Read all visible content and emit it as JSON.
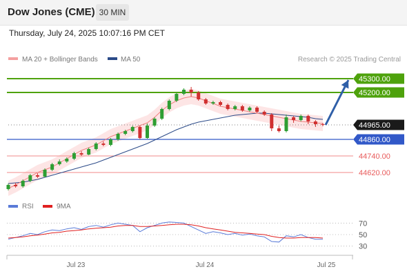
{
  "header": {
    "title": "Dow Jones (CME)",
    "timeframe": "30 MIN"
  },
  "datetime": "Thursday, July 24, 2025 10:07:16 PM CET",
  "legend": {
    "bb_label": "MA 20 + Bollinger Bands",
    "ma50_label": "MA 50",
    "credit": "Research © 2025 Trading Central"
  },
  "rsi_legend": {
    "rsi_label": "RSI",
    "ma_label": "9MA"
  },
  "colors": {
    "green": "#4ea20c",
    "blue": "#3158c8",
    "red": "#e85a5a",
    "bb_fill": "#fcdcdc",
    "ma20": "#f08080",
    "ma50": "#2b4a88",
    "arrow": "#2f5fa8",
    "candle_up": "#2e9e33",
    "candle_down": "#d03030"
  },
  "chart_data": [
    {
      "type": "candlestick",
      "ylim": [
        44460,
        45390
      ],
      "x_ticks": [
        "Jul 23",
        "Jul 24",
        "Jul 25"
      ],
      "series": [
        {
          "name": "MA 20 + Bollinger Bands",
          "values": [
            44505,
            44530,
            44560,
            44590,
            44620,
            44640,
            44660,
            44690,
            44720,
            44750,
            44780,
            44800,
            44820,
            44850,
            44880,
            44900,
            44920,
            44940,
            44960,
            44980,
            45020,
            45070,
            45110,
            45140,
            45160,
            45170,
            45160,
            45140,
            45120,
            45100,
            45090,
            45080,
            45070,
            45060,
            45050,
            45040,
            45030,
            45020,
            45010,
            45000,
            44990,
            44985,
            44980,
            44975
          ]
        },
        {
          "name": "MA 50",
          "values": [
            44540,
            44545,
            44550,
            44560,
            44570,
            44585,
            44600,
            44615,
            44630,
            44645,
            44660,
            44675,
            44690,
            44710,
            44730,
            44750,
            44770,
            44790,
            44810,
            44830,
            44855,
            44880,
            44905,
            44930,
            44950,
            44970,
            44985,
            44995,
            45005,
            45015,
            45025,
            45035,
            45040,
            45045,
            45050,
            45050,
            45045,
            45040,
            45035,
            45030,
            45025,
            45020,
            45010,
            45005
          ]
        }
      ],
      "candles": [
        [
          44500,
          44530,
          44490,
          44540
        ],
        [
          44530,
          44520,
          44510,
          44545
        ],
        [
          44520,
          44560,
          44510,
          44570
        ],
        [
          44560,
          44600,
          44550,
          44610
        ],
        [
          44600,
          44590,
          44580,
          44615
        ],
        [
          44590,
          44640,
          44585,
          44650
        ],
        [
          44640,
          44680,
          44630,
          44690
        ],
        [
          44680,
          44700,
          44670,
          44715
        ],
        [
          44700,
          44720,
          44690,
          44730
        ],
        [
          44720,
          44760,
          44710,
          44770
        ],
        [
          44760,
          44750,
          44740,
          44775
        ],
        [
          44750,
          44790,
          44745,
          44800
        ],
        [
          44790,
          44830,
          44780,
          44840
        ],
        [
          44830,
          44820,
          44810,
          44845
        ],
        [
          44820,
          44860,
          44810,
          44870
        ],
        [
          44860,
          44900,
          44850,
          44910
        ],
        [
          44900,
          44920,
          44890,
          44930
        ],
        [
          44920,
          44950,
          44910,
          44960
        ],
        [
          44950,
          44870,
          44860,
          44960
        ],
        [
          44870,
          44960,
          44865,
          44975
        ],
        [
          44960,
          45010,
          44950,
          45020
        ],
        [
          45010,
          45080,
          45000,
          45090
        ],
        [
          45080,
          45140,
          45070,
          45150
        ],
        [
          45140,
          45190,
          45130,
          45200
        ],
        [
          45190,
          45220,
          45180,
          45230
        ],
        [
          45220,
          45200,
          45170,
          45240
        ],
        [
          45200,
          45150,
          45140,
          45210
        ],
        [
          45150,
          45120,
          45110,
          45160
        ],
        [
          45120,
          45130,
          45110,
          45140
        ],
        [
          45130,
          45110,
          45100,
          45140
        ],
        [
          45110,
          45080,
          45070,
          45120
        ],
        [
          45080,
          45100,
          45070,
          45110
        ],
        [
          45100,
          45070,
          45060,
          45110
        ],
        [
          45070,
          45090,
          45060,
          45100
        ],
        [
          45090,
          45060,
          45050,
          45100
        ],
        [
          45060,
          45040,
          45030,
          45070
        ],
        [
          45040,
          44940,
          44920,
          45050
        ],
        [
          44940,
          44920,
          44910,
          44960
        ],
        [
          44920,
          45020,
          44910,
          45040
        ],
        [
          45020,
          45000,
          44980,
          45030
        ],
        [
          45000,
          45030,
          44990,
          45040
        ],
        [
          45030,
          44990,
          44970,
          45040
        ],
        [
          44990,
          44970,
          44950,
          45000
        ],
        [
          44970,
          44965,
          44955,
          44980
        ]
      ],
      "levels": [
        {
          "label": "45300.00",
          "value": 45300,
          "kind": "resistance"
        },
        {
          "label": "45200.00",
          "value": 45200,
          "kind": "resistance"
        },
        {
          "label": "44965.00",
          "value": 44965,
          "kind": "last"
        },
        {
          "label": "44860.00",
          "value": 44860,
          "kind": "pivot"
        },
        {
          "label": "44740.00",
          "value": 44740,
          "kind": "support"
        },
        {
          "label": "44620.00",
          "value": 44620,
          "kind": "support"
        }
      ],
      "projection": {
        "from": 44965,
        "to": 45300
      }
    },
    {
      "type": "line",
      "ylim": [
        20,
        80
      ],
      "y_ticks": [
        "70",
        "50",
        "30"
      ],
      "series": [
        {
          "name": "RSI",
          "values": [
            42,
            45,
            48,
            52,
            50,
            55,
            58,
            57,
            60,
            62,
            59,
            64,
            66,
            63,
            67,
            70,
            68,
            66,
            55,
            62,
            66,
            70,
            72,
            71,
            70,
            64,
            58,
            52,
            55,
            53,
            50,
            52,
            49,
            51,
            48,
            46,
            38,
            37,
            48,
            46,
            50,
            45,
            42,
            42
          ]
        },
        {
          "name": "9MA",
          "values": [
            44,
            45,
            46,
            48,
            49,
            51,
            53,
            54,
            56,
            57,
            58,
            60,
            61,
            62,
            63,
            65,
            66,
            66,
            64,
            64,
            65,
            66,
            67,
            68,
            68,
            67,
            65,
            62,
            60,
            58,
            56,
            54,
            53,
            52,
            51,
            50,
            47,
            45,
            44,
            44,
            45,
            45,
            45,
            44
          ]
        }
      ]
    }
  ]
}
